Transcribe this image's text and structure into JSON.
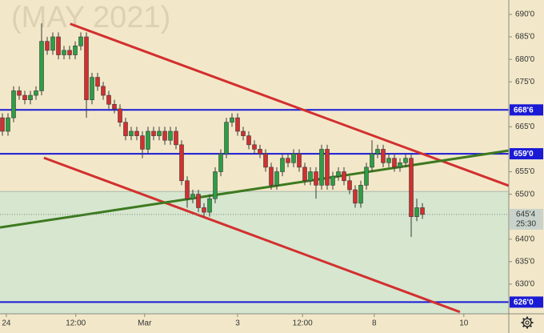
{
  "chart_data": {
    "type": "candlestick",
    "title": "(MAY 2021)",
    "open": [
      667,
      664,
      667,
      673,
      672,
      671,
      672,
      673,
      684,
      682,
      685,
      681,
      682,
      681,
      683,
      685,
      671,
      676,
      674,
      672,
      670,
      669,
      666,
      663,
      664,
      663,
      660,
      664,
      663,
      664,
      662,
      664,
      661,
      653,
      649,
      650,
      647,
      646,
      649,
      655,
      659,
      666,
      667,
      664,
      663,
      661,
      660,
      659,
      656,
      652,
      655,
      658,
      657,
      659,
      656,
      653,
      655,
      652,
      660,
      652,
      654,
      655,
      653,
      651,
      648,
      652,
      656,
      659,
      660,
      657,
      658,
      656,
      657,
      658,
      645,
      647
    ],
    "high": [
      668,
      668,
      674,
      674,
      673,
      673,
      674,
      688,
      685,
      686,
      686,
      683,
      683,
      684,
      686,
      686,
      677,
      677,
      675,
      673,
      671,
      670,
      667,
      665,
      665,
      664,
      665,
      665,
      665,
      665,
      665,
      665,
      662,
      654,
      651,
      651,
      648,
      650,
      656,
      660,
      667,
      668,
      668,
      665,
      664,
      662,
      661,
      660,
      657,
      656,
      659,
      659,
      660,
      660,
      657,
      656,
      656,
      661,
      661,
      655,
      656,
      656,
      654,
      652,
      653,
      657,
      662,
      661,
      661,
      659,
      659,
      658,
      659,
      659,
      649,
      648
    ],
    "low": [
      663,
      663,
      666,
      671,
      670,
      670,
      671,
      672,
      681,
      681,
      680,
      680,
      680,
      680,
      682,
      667,
      670,
      673,
      671,
      669,
      668,
      665,
      662,
      662,
      662,
      658,
      659,
      662,
      662,
      661,
      661,
      660,
      652,
      647,
      648,
      646,
      645,
      645,
      648,
      654,
      658,
      665,
      663,
      662,
      660,
      659,
      658,
      655,
      651,
      651,
      654,
      656,
      656,
      655,
      652,
      652,
      649,
      651,
      651,
      651,
      653,
      652,
      650,
      647,
      647,
      651,
      655,
      658,
      656,
      656,
      655,
      655,
      656,
      640.5,
      644,
      644.5
    ],
    "close": [
      664,
      667,
      673,
      672,
      671,
      672,
      673,
      684,
      682,
      685,
      681,
      682,
      681,
      683,
      685,
      671,
      676,
      674,
      672,
      670,
      669,
      666,
      663,
      664,
      663,
      660,
      664,
      663,
      664,
      662,
      664,
      661,
      653,
      649,
      650,
      647,
      646,
      649,
      655,
      659,
      666,
      667,
      664,
      663,
      661,
      660,
      659,
      656,
      652,
      655,
      658,
      657,
      659,
      656,
      653,
      655,
      652,
      660,
      652,
      654,
      655,
      653,
      651,
      648,
      652,
      656,
      659,
      660,
      657,
      658,
      656,
      657,
      658,
      645,
      647,
      645.5
    ],
    "up_color": "#2e9e44",
    "down_color": "#d32f2f",
    "xlim": [
      -0.43,
      90.43
    ],
    "xticks": [
      {
        "value": 0.7,
        "label": "24"
      },
      {
        "value": 13.1,
        "label": "12:00"
      },
      {
        "value": 25.4,
        "label": "Mar"
      },
      {
        "value": 42,
        "label": "3"
      },
      {
        "value": 53.6,
        "label": "12:00"
      },
      {
        "value": 66.4,
        "label": "8"
      },
      {
        "value": 82.4,
        "label": "10"
      }
    ],
    "ylim": [
      623.4,
      693.2
    ],
    "yticks": [
      {
        "value": 690,
        "label": "690'0"
      },
      {
        "value": 685,
        "label": "685'0"
      },
      {
        "value": 680,
        "label": "680'0"
      },
      {
        "value": 675,
        "label": "675'0"
      },
      {
        "value": 665,
        "label": "665'0"
      },
      {
        "value": 655,
        "label": "655'0"
      },
      {
        "value": 650,
        "label": "650'0"
      },
      {
        "value": 640,
        "label": "640'0"
      },
      {
        "value": 635,
        "label": "635'0"
      },
      {
        "value": 630,
        "label": "630'0"
      }
    ],
    "shaded_zone": {
      "from": 620,
      "to": 650.6,
      "color": "#d6e6cf"
    },
    "horizontal_lines": [
      {
        "value": 668.75,
        "label": "668'6",
        "color": "#1a1ad6"
      },
      {
        "value": 659,
        "label": "659'0",
        "color": "#1a1ad6"
      },
      {
        "value": 626,
        "label": "626'0",
        "color": "#1a1ad6"
      }
    ],
    "trend_lines": [
      {
        "x": [
          12.1,
          90.4
        ],
        "y": [
          687.9,
          651.9
        ],
        "color": "#d32f2f"
      },
      {
        "x": [
          7.4,
          81.7
        ],
        "y": [
          658.1,
          623.8
        ],
        "color": "#d32f2f"
      },
      {
        "x": [
          -0.43,
          90.4
        ],
        "y": [
          642.6,
          659.7
        ],
        "color": "#3d7a1f"
      }
    ],
    "last_price": {
      "value": 645.5,
      "label": "645'4",
      "countdown": "25:30"
    }
  }
}
